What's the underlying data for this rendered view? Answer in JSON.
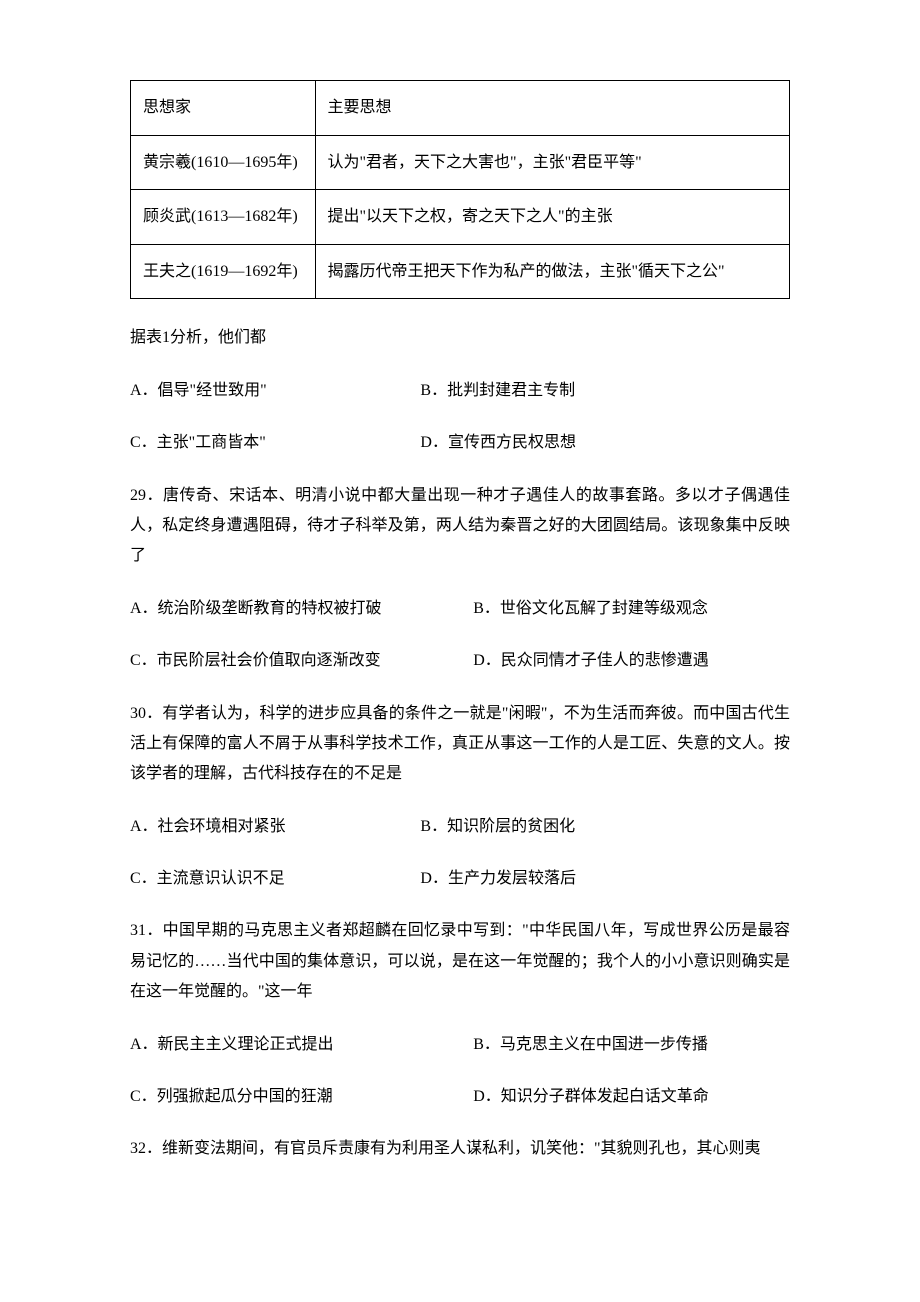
{
  "table1": {
    "header": {
      "c1": "思想家",
      "c2": "主要思想"
    },
    "rows": [
      {
        "c1": "黄宗羲(1610—1695年)",
        "c2": "认为\"君者，天下之大害也\"，主张\"君臣平等\""
      },
      {
        "c1": "顾炎武(1613—1682年)",
        "c2": "提出\"以天下之权，寄之天下之人\"的主张"
      },
      {
        "c1": "王夫之(1619—1692年)",
        "c2": "揭露历代帝王把天下作为私产的做法，主张\"循天下之公\""
      }
    ]
  },
  "q28": {
    "stem": "据表1分析，他们都",
    "a": "A．倡导\"经世致用\"",
    "b": "B．批判封建君主专制",
    "c": "C．主张\"工商皆本\"",
    "d": "D．宣传西方民权思想"
  },
  "q29": {
    "stem": "29．唐传奇、宋话本、明清小说中都大量出现一种才子遇佳人的故事套路。多以才子偶遇佳人，私定终身遭遇阻碍，待才子科举及第，两人结为秦晋之好的大团圆结局。该现象集中反映了",
    "a": "A．统治阶级垄断教育的特权被打破",
    "b": "B．世俗文化瓦解了封建等级观念",
    "c": "C．市民阶层社会价值取向逐渐改变",
    "d": "D．民众同情才子佳人的悲惨遭遇"
  },
  "q30": {
    "stem": "30．有学者认为，科学的进步应具备的条件之一就是\"闲暇\"，不为生活而奔彼。而中国古代生活上有保障的富人不屑于从事科学技术工作，真正从事这一工作的人是工匠、失意的文人。按该学者的理解，古代科技存在的不足是",
    "a": "A．社会环境相对紧张",
    "b": "B．知识阶层的贫困化",
    "c": "C．主流意识认识不足",
    "d": "D．生产力发层较落后"
  },
  "q31": {
    "stem": "31．中国早期的马克思主义者郑超麟在回忆录中写到：\"中华民国八年，写成世界公历是最容易记忆的……当代中国的集体意识，可以说，是在这一年觉醒的；我个人的小小意识则确实是在这一年觉醒的。\"这一年",
    "a": "A．新民主主义理论正式提出",
    "b": "B．马克思主义在中国进一步传播",
    "c": "C．列强掀起瓜分中国的狂潮",
    "d": "D．知识分子群体发起白话文革命"
  },
  "q32": {
    "stem": "32．维新变法期间，有官员斥责康有为利用圣人谋私利，讥笑他：\"其貌则孔也，其心则夷"
  }
}
